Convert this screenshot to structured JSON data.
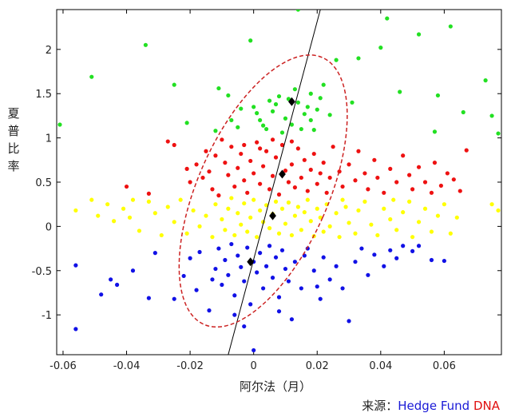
{
  "chart_data": {
    "type": "scatter",
    "xlabel": "阿尔法（月）",
    "ylabel": "夏普比率",
    "xlim": [
      -0.062,
      0.078
    ],
    "ylim": [
      -1.45,
      2.45
    ],
    "xticks": [
      "-0.06",
      "-0.04",
      "-0.02",
      "0",
      "0.02",
      "0.04",
      "0.06"
    ],
    "yticks": [
      "-1",
      "-0.5",
      "0",
      "0.5",
      "1",
      "1.5",
      "2"
    ],
    "colors": {
      "green": "#22e022",
      "red": "#ee1111",
      "yellow": "#ffff00",
      "blue": "#1111e6",
      "black": "#000000",
      "ellipse": "#cc2222"
    },
    "series": [
      {
        "color": "green",
        "points": [
          [
            -0.061,
            1.15
          ],
          [
            -0.051,
            1.69
          ],
          [
            -0.034,
            2.05
          ],
          [
            -0.025,
            1.6
          ],
          [
            -0.021,
            1.17
          ],
          [
            -0.011,
            1.56
          ],
          [
            -0.008,
            1.48
          ],
          [
            -0.007,
            1.2
          ],
          [
            -0.005,
            1.12
          ],
          [
            -0.004,
            1.33
          ],
          [
            -0.001,
            2.1
          ],
          [
            0.0,
            1.35
          ],
          [
            0.001,
            1.28
          ],
          [
            0.002,
            1.2
          ],
          [
            0.004,
            1.1
          ],
          [
            0.005,
            1.42
          ],
          [
            0.006,
            1.3
          ],
          [
            0.007,
            1.38
          ],
          [
            0.009,
            1.06
          ],
          [
            0.01,
            1.22
          ],
          [
            0.011,
            1.44
          ],
          [
            0.012,
            1.15
          ],
          [
            0.013,
            1.55
          ],
          [
            0.014,
            2.45
          ],
          [
            0.014,
            1.4
          ],
          [
            0.015,
            1.1
          ],
          [
            0.016,
            1.27
          ],
          [
            0.017,
            1.35
          ],
          [
            0.018,
            1.5
          ],
          [
            0.018,
            1.2
          ],
          [
            0.019,
            1.09
          ],
          [
            0.02,
            1.32
          ],
          [
            0.021,
            1.45
          ],
          [
            0.022,
            1.6
          ],
          [
            0.024,
            1.26
          ],
          [
            0.026,
            1.88
          ],
          [
            0.031,
            1.4
          ],
          [
            0.033,
            1.9
          ],
          [
            0.04,
            2.02
          ],
          [
            0.042,
            2.35
          ],
          [
            0.046,
            1.52
          ],
          [
            0.052,
            2.17
          ],
          [
            0.057,
            1.07
          ],
          [
            0.058,
            1.48
          ],
          [
            0.066,
            1.29
          ],
          [
            0.073,
            1.65
          ],
          [
            0.075,
            1.25
          ],
          [
            0.077,
            1.05
          ],
          [
            0.062,
            2.26
          ],
          [
            -0.012,
            1.08
          ],
          [
            0.008,
            1.47
          ],
          [
            0.003,
            1.14
          ]
        ]
      },
      {
        "color": "red",
        "points": [
          [
            -0.04,
            0.45
          ],
          [
            -0.033,
            0.37
          ],
          [
            -0.027,
            0.96
          ],
          [
            -0.021,
            0.65
          ],
          [
            -0.02,
            0.5
          ],
          [
            -0.018,
            0.7
          ],
          [
            -0.016,
            0.55
          ],
          [
            -0.014,
            0.62
          ],
          [
            -0.013,
            0.42
          ],
          [
            -0.012,
            0.8
          ],
          [
            -0.011,
            0.35
          ],
          [
            -0.009,
            0.72
          ],
          [
            -0.008,
            0.58
          ],
          [
            -0.007,
            0.9
          ],
          [
            -0.006,
            0.45
          ],
          [
            -0.005,
            0.66
          ],
          [
            -0.004,
            0.82
          ],
          [
            -0.003,
            0.52
          ],
          [
            -0.002,
            0.38
          ],
          [
            -0.001,
            0.74
          ],
          [
            0.0,
            0.6
          ],
          [
            0.001,
            0.95
          ],
          [
            0.002,
            0.48
          ],
          [
            0.003,
            0.68
          ],
          [
            0.004,
            0.85
          ],
          [
            0.005,
            0.42
          ],
          [
            0.006,
            0.57
          ],
          [
            0.007,
            0.78
          ],
          [
            0.008,
            0.36
          ],
          [
            0.009,
            0.92
          ],
          [
            0.01,
            0.63
          ],
          [
            0.011,
            0.5
          ],
          [
            0.012,
            0.7
          ],
          [
            0.013,
            0.44
          ],
          [
            0.014,
            0.88
          ],
          [
            0.015,
            0.55
          ],
          [
            0.016,
            0.75
          ],
          [
            0.017,
            0.4
          ],
          [
            0.018,
            0.64
          ],
          [
            0.019,
            0.82
          ],
          [
            0.02,
            0.48
          ],
          [
            0.021,
            0.6
          ],
          [
            0.022,
            0.72
          ],
          [
            0.023,
            0.38
          ],
          [
            0.024,
            0.55
          ],
          [
            0.025,
            0.9
          ],
          [
            0.027,
            0.62
          ],
          [
            0.028,
            0.45
          ],
          [
            0.03,
            0.7
          ],
          [
            0.032,
            0.52
          ],
          [
            0.033,
            0.85
          ],
          [
            0.035,
            0.6
          ],
          [
            0.036,
            0.42
          ],
          [
            0.038,
            0.75
          ],
          [
            0.039,
            0.55
          ],
          [
            0.041,
            0.38
          ],
          [
            0.043,
            0.65
          ],
          [
            0.045,
            0.5
          ],
          [
            0.047,
            0.8
          ],
          [
            0.049,
            0.58
          ],
          [
            0.05,
            0.42
          ],
          [
            0.052,
            0.67
          ],
          [
            0.054,
            0.5
          ],
          [
            0.056,
            0.38
          ],
          [
            0.057,
            0.72
          ],
          [
            0.059,
            0.46
          ],
          [
            0.061,
            0.6
          ],
          [
            0.063,
            0.53
          ],
          [
            0.065,
            0.4
          ],
          [
            0.067,
            0.86
          ],
          [
            -0.025,
            0.92
          ],
          [
            -0.015,
            0.85
          ],
          [
            -0.01,
            0.98
          ],
          [
            0.006,
            0.98
          ],
          [
            0.012,
            0.96
          ],
          [
            -0.003,
            0.92
          ],
          [
            0.002,
            0.88
          ]
        ]
      },
      {
        "color": "yellow",
        "points": [
          [
            -0.056,
            0.18
          ],
          [
            -0.051,
            0.3
          ],
          [
            -0.049,
            0.12
          ],
          [
            -0.046,
            0.25
          ],
          [
            -0.044,
            0.06
          ],
          [
            -0.041,
            0.2
          ],
          [
            -0.039,
            0.1
          ],
          [
            -0.036,
            -0.05
          ],
          [
            -0.033,
            0.28
          ],
          [
            -0.031,
            0.15
          ],
          [
            -0.029,
            -0.1
          ],
          [
            -0.027,
            0.22
          ],
          [
            -0.025,
            0.05
          ],
          [
            -0.023,
            0.3
          ],
          [
            -0.021,
            -0.08
          ],
          [
            -0.019,
            0.18
          ],
          [
            -0.017,
            0.0
          ],
          [
            -0.015,
            0.12
          ],
          [
            -0.013,
            -0.12
          ],
          [
            -0.012,
            0.25
          ],
          [
            -0.01,
            0.08
          ],
          [
            -0.009,
            -0.04
          ],
          [
            -0.008,
            0.2
          ],
          [
            -0.007,
            0.32
          ],
          [
            -0.006,
            -0.1
          ],
          [
            -0.005,
            0.15
          ],
          [
            -0.004,
            0.02
          ],
          [
            -0.003,
            0.26
          ],
          [
            -0.002,
            -0.06
          ],
          [
            -0.001,
            0.1
          ],
          [
            0.0,
            0.3
          ],
          [
            0.001,
            -0.12
          ],
          [
            0.002,
            0.18
          ],
          [
            0.003,
            0.05
          ],
          [
            0.004,
            0.24
          ],
          [
            0.005,
            -0.02
          ],
          [
            0.006,
            0.14
          ],
          [
            0.007,
            0.28
          ],
          [
            0.008,
            -0.08
          ],
          [
            0.009,
            0.2
          ],
          [
            0.01,
            0.03
          ],
          [
            0.011,
            0.27
          ],
          [
            0.012,
            -0.1
          ],
          [
            0.013,
            0.12
          ],
          [
            0.014,
            0.22
          ],
          [
            0.015,
            -0.04
          ],
          [
            0.016,
            0.16
          ],
          [
            0.017,
            0.3
          ],
          [
            0.018,
            0.06
          ],
          [
            0.019,
            -0.11
          ],
          [
            0.02,
            0.2
          ],
          [
            0.021,
            0.1
          ],
          [
            0.022,
            -0.06
          ],
          [
            0.023,
            0.25
          ],
          [
            0.024,
            0.0
          ],
          [
            0.026,
            0.15
          ],
          [
            0.027,
            -0.12
          ],
          [
            0.029,
            0.22
          ],
          [
            0.03,
            0.04
          ],
          [
            0.032,
            -0.08
          ],
          [
            0.033,
            0.18
          ],
          [
            0.035,
            0.28
          ],
          [
            0.037,
            0.02
          ],
          [
            0.039,
            -0.1
          ],
          [
            0.041,
            0.2
          ],
          [
            0.043,
            0.08
          ],
          [
            0.045,
            -0.04
          ],
          [
            0.047,
            0.16
          ],
          [
            0.049,
            0.28
          ],
          [
            0.05,
            -0.12
          ],
          [
            0.052,
            0.05
          ],
          [
            0.054,
            0.2
          ],
          [
            0.056,
            -0.06
          ],
          [
            0.058,
            0.12
          ],
          [
            0.06,
            0.25
          ],
          [
            0.062,
            -0.08
          ],
          [
            0.064,
            0.1
          ],
          [
            0.075,
            0.25
          ],
          [
            0.077,
            0.18
          ],
          [
            -0.038,
            0.3
          ],
          [
            0.028,
            0.3
          ],
          [
            0.044,
            0.3
          ]
        ]
      },
      {
        "color": "blue",
        "points": [
          [
            -0.056,
            -0.44
          ],
          [
            -0.056,
            -1.16
          ],
          [
            -0.048,
            -0.77
          ],
          [
            -0.045,
            -0.6
          ],
          [
            -0.043,
            -0.66
          ],
          [
            -0.038,
            -0.5
          ],
          [
            -0.033,
            -0.81
          ],
          [
            -0.031,
            -0.3
          ],
          [
            -0.025,
            -0.82
          ],
          [
            -0.022,
            -0.56
          ],
          [
            -0.02,
            -0.36
          ],
          [
            -0.018,
            -0.72
          ],
          [
            -0.017,
            -0.29
          ],
          [
            -0.014,
            -0.95
          ],
          [
            -0.012,
            -0.48
          ],
          [
            -0.011,
            -0.25
          ],
          [
            -0.01,
            -0.66
          ],
          [
            -0.009,
            -0.38
          ],
          [
            -0.008,
            -0.55
          ],
          [
            -0.007,
            -0.2
          ],
          [
            -0.006,
            -0.78
          ],
          [
            -0.005,
            -0.33
          ],
          [
            -0.004,
            -0.46
          ],
          [
            -0.003,
            -0.62
          ],
          [
            -0.002,
            -0.24
          ],
          [
            -0.001,
            -0.88
          ],
          [
            0.0,
            -0.4
          ],
          [
            0.001,
            -0.52
          ],
          [
            0.002,
            -0.3
          ],
          [
            0.003,
            -0.7
          ],
          [
            0.004,
            -0.45
          ],
          [
            0.005,
            -0.22
          ],
          [
            0.006,
            -0.58
          ],
          [
            0.007,
            -0.35
          ],
          [
            0.008,
            -0.8
          ],
          [
            0.009,
            -0.27
          ],
          [
            0.01,
            -0.48
          ],
          [
            0.011,
            -0.62
          ],
          [
            0.012,
            -1.05
          ],
          [
            0.013,
            -0.4
          ],
          [
            0.015,
            -0.7
          ],
          [
            0.017,
            -0.25
          ],
          [
            0.019,
            -0.5
          ],
          [
            0.021,
            -0.82
          ],
          [
            0.022,
            -0.35
          ],
          [
            0.024,
            -0.6
          ],
          [
            0.026,
            -0.45
          ],
          [
            0.028,
            -0.7
          ],
          [
            0.03,
            -1.07
          ],
          [
            0.032,
            -0.4
          ],
          [
            0.034,
            -0.25
          ],
          [
            0.036,
            -0.55
          ],
          [
            0.038,
            -0.32
          ],
          [
            0.041,
            -0.45
          ],
          [
            0.043,
            -0.27
          ],
          [
            0.045,
            -0.36
          ],
          [
            0.047,
            -0.22
          ],
          [
            0.05,
            -0.28
          ],
          [
            0.052,
            -0.22
          ],
          [
            0.056,
            -0.38
          ],
          [
            0.06,
            -0.39
          ],
          [
            0.0,
            -1.4
          ],
          [
            -0.003,
            -1.13
          ],
          [
            -0.006,
            -1.0
          ],
          [
            0.008,
            -0.96
          ],
          [
            0.016,
            -0.33
          ],
          [
            0.02,
            -0.68
          ],
          [
            -0.013,
            -0.6
          ]
        ]
      },
      {
        "color": "black",
        "marker": "diamond",
        "points": [
          [
            -0.001,
            -0.4
          ],
          [
            0.006,
            0.12
          ],
          [
            0.009,
            0.59
          ],
          [
            0.012,
            1.41
          ]
        ]
      }
    ],
    "regression_line": {
      "x": [
        -0.008,
        0.021
      ],
      "y": [
        -1.45,
        2.45
      ]
    },
    "ellipse": {
      "center": [
        0.003,
        0.4
      ],
      "rx": 0.0205,
      "ry": 1.65,
      "angle_deg": -24
    }
  },
  "source": {
    "prefix": "来源：",
    "part1": "Hedge Fund",
    "part2": "DNA"
  }
}
